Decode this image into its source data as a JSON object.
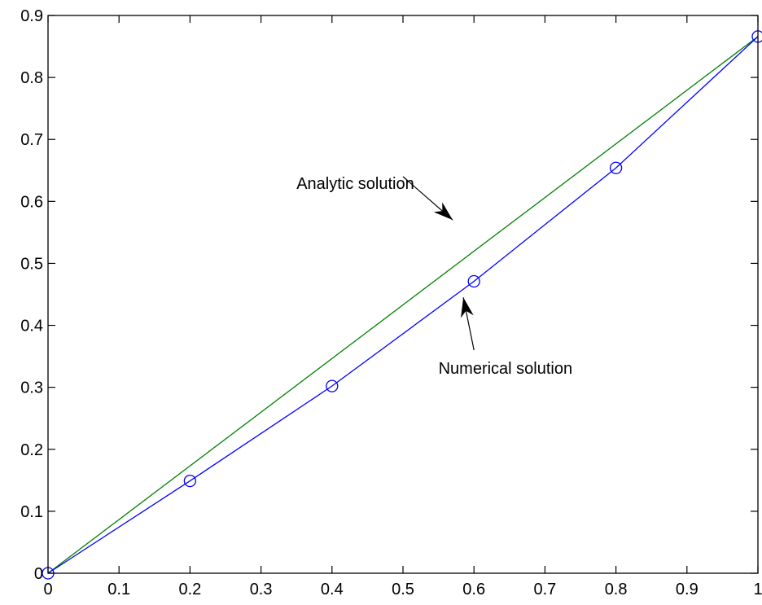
{
  "chart_data": {
    "type": "line",
    "title": "",
    "xlabel": "",
    "ylabel": "",
    "xlim": [
      0,
      1
    ],
    "ylim": [
      0,
      0.9
    ],
    "x_ticks": [
      0,
      0.1,
      0.2,
      0.3,
      0.4,
      0.5,
      0.6,
      0.7,
      0.8,
      0.9,
      1
    ],
    "x_tick_labels": [
      "0",
      "0.1",
      "0.2",
      "0.3",
      "0.4",
      "0.5",
      "0.6",
      "0.7",
      "0.8",
      "0.9",
      "1"
    ],
    "y_ticks": [
      0,
      0.1,
      0.2,
      0.3,
      0.4,
      0.5,
      0.6,
      0.7,
      0.8,
      0.9
    ],
    "y_tick_labels": [
      "0",
      "0.1",
      "0.2",
      "0.3",
      "0.4",
      "0.5",
      "0.6",
      "0.7",
      "0.8",
      "0.9"
    ],
    "grid": false,
    "legend": "none",
    "series": [
      {
        "key": "analytic",
        "color": "#008000",
        "marker": "none",
        "x": [
          0,
          1
        ],
        "y": [
          0,
          0.866
        ]
      },
      {
        "key": "numerical",
        "color": "#0000ff",
        "marker": "circle",
        "x": [
          0,
          0.2,
          0.4,
          0.6,
          0.8,
          1.0
        ],
        "y": [
          0,
          0.149,
          0.302,
          0.471,
          0.654,
          0.866
        ]
      }
    ],
    "annotations": [
      {
        "text": "Analytic solution",
        "text_at": [
          0.35,
          0.62
        ],
        "arrow_from": [
          0.5,
          0.64
        ],
        "arrow_to": [
          0.57,
          0.57
        ]
      },
      {
        "text": "Numerical solution",
        "text_at": [
          0.55,
          0.322
        ],
        "arrow_from": [
          0.6,
          0.36
        ],
        "arrow_to": [
          0.585,
          0.445
        ]
      }
    ]
  }
}
